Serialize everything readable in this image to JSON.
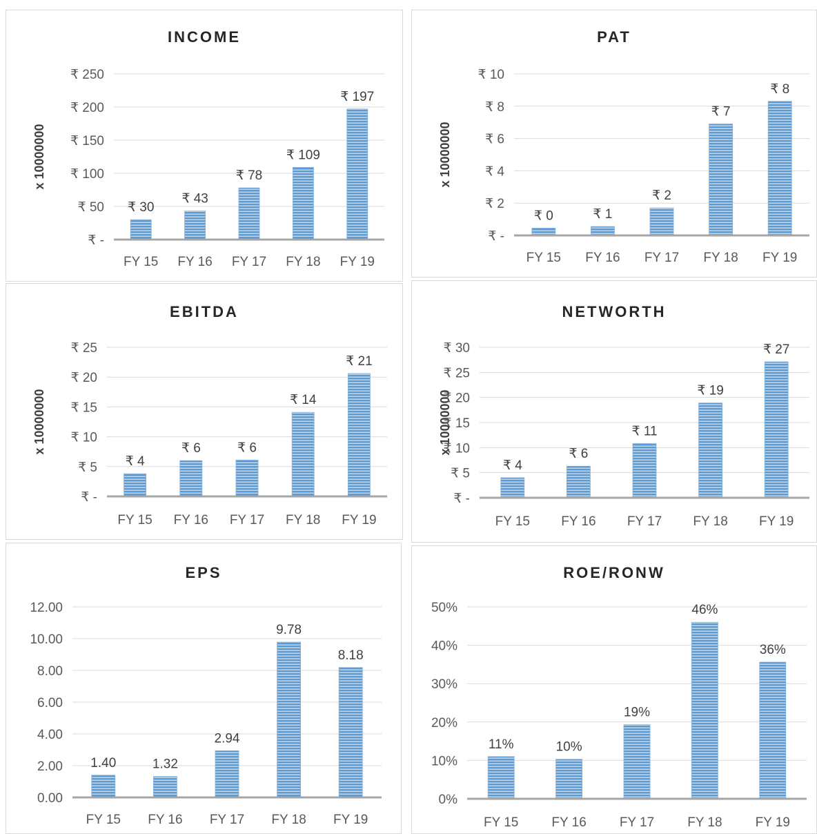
{
  "bar_color": "#5b9bd5",
  "stripe_color": "#ffffff",
  "chart_data": [
    {
      "type": "bar",
      "title": "INCOME",
      "ylabel": "x 10000000",
      "categories": [
        "FY 15",
        "FY 16",
        "FY 17",
        "FY 18",
        "FY 19"
      ],
      "values": [
        30,
        43,
        78,
        109,
        197
      ],
      "data_labels": [
        "₹ 30",
        "₹ 43",
        "₹ 78",
        "₹ 109",
        "₹ 197"
      ],
      "ylim": [
        0,
        250
      ],
      "yticks": [
        "₹ -",
        "₹ 50",
        "₹ 100",
        "₹ 150",
        "₹ 200",
        "₹ 250"
      ],
      "grid": true
    },
    {
      "type": "bar",
      "title": "PAT",
      "ylabel": "x 10000000",
      "categories": [
        "FY 15",
        "FY 16",
        "FY 17",
        "FY 18",
        "FY 19"
      ],
      "values": [
        0.45,
        0.55,
        1.7,
        6.9,
        8.3
      ],
      "data_labels": [
        "₹ 0",
        "₹ 1",
        "₹ 2",
        "₹ 7",
        "₹ 8"
      ],
      "ylim": [
        0,
        10
      ],
      "yticks": [
        "₹ -",
        "₹ 2",
        "₹ 4",
        "₹ 6",
        "₹ 8",
        "₹ 10"
      ],
      "grid": true
    },
    {
      "type": "bar",
      "title": "EBITDA",
      "ylabel": "x 10000000",
      "categories": [
        "FY 15",
        "FY 16",
        "FY 17",
        "FY 18",
        "FY 19"
      ],
      "values": [
        3.8,
        6.0,
        6.1,
        14.1,
        20.6
      ],
      "data_labels": [
        "₹ 4",
        "₹ 6",
        "₹ 6",
        "₹ 14",
        "₹ 21"
      ],
      "ylim": [
        0,
        25
      ],
      "yticks": [
        "₹ -",
        "₹ 5",
        "₹ 10",
        "₹ 15",
        "₹ 20",
        "₹ 25"
      ],
      "grid": true
    },
    {
      "type": "bar",
      "title": "NETWORTH",
      "ylabel": "x 10000000",
      "categories": [
        "FY 15",
        "FY 16",
        "FY 17",
        "FY 18",
        "FY 19"
      ],
      "values": [
        4.0,
        6.3,
        10.8,
        18.9,
        27.1
      ],
      "data_labels": [
        "₹ 4",
        "₹ 6",
        "₹ 11",
        "₹ 19",
        "₹ 27"
      ],
      "ylim": [
        0,
        30
      ],
      "yticks": [
        "₹ -",
        "₹ 5",
        "₹ 10",
        "₹ 15",
        "₹ 20",
        "₹ 25",
        "₹ 30"
      ],
      "grid": true
    },
    {
      "type": "bar",
      "title": "EPS",
      "ylabel": "",
      "categories": [
        "FY 15",
        "FY 16",
        "FY 17",
        "FY 18",
        "FY 19"
      ],
      "values": [
        1.4,
        1.32,
        2.94,
        9.78,
        8.18
      ],
      "data_labels": [
        "1.40",
        "1.32",
        "2.94",
        "9.78",
        "8.18"
      ],
      "ylim": [
        0,
        12
      ],
      "yticks": [
        "0.00",
        "2.00",
        "4.00",
        "6.00",
        "8.00",
        "10.00",
        "12.00"
      ],
      "grid": true
    },
    {
      "type": "bar",
      "title": "ROE/RONW",
      "ylabel": "",
      "categories": [
        "FY 15",
        "FY 16",
        "FY 17",
        "FY 18",
        "FY 19"
      ],
      "values": [
        11,
        10.3,
        19.3,
        46,
        35.6
      ],
      "data_labels": [
        "11%",
        "10%",
        "19%",
        "46%",
        "36%"
      ],
      "ylim": [
        0,
        50
      ],
      "yticks": [
        "0%",
        "10%",
        "20%",
        "30%",
        "40%",
        "50%"
      ],
      "grid": true
    }
  ]
}
